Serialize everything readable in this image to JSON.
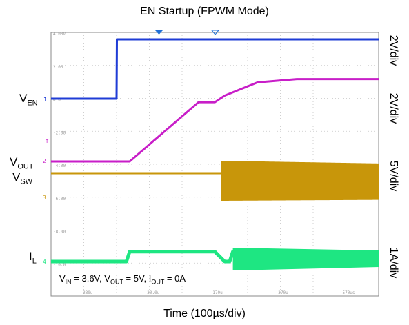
{
  "title": "EN Startup (FPWM Mode)",
  "xlabel": "Time (100µs/div)",
  "scales": [
    "2V/div",
    "2V/div",
    "5V/div",
    "1A/div"
  ],
  "signals": [
    {
      "main": "V",
      "sub": "EN"
    },
    {
      "main": "V",
      "sub": "OUT"
    },
    {
      "main": "V",
      "sub": "SW"
    },
    {
      "main": "I",
      "sub": "L"
    }
  ],
  "conditions": [
    {
      "main": "V",
      "sub": "IN",
      "value": " = 3.6V, "
    },
    {
      "main": "V",
      "sub": "OUT",
      "value": " = 5V, "
    },
    {
      "main": "I",
      "sub": "OUT",
      "value": " = 0A"
    }
  ],
  "chart_data": {
    "type": "line",
    "title": "EN Startup (FPWM Mode)",
    "xlabel": "Time (100µs/div)",
    "x_tick_labels": [
      "-230u",
      "-30.0u",
      "170u",
      "370u",
      "570us"
    ],
    "y_tick_labels": [
      "4.00V",
      "2.00",
      "0.0",
      "-2.00",
      "-4.00",
      "-6.00",
      "-8.00",
      "-10.0"
    ],
    "grid": true,
    "colors": {
      "VEN": "#1f3cd6",
      "VOUT": "#c81ec8",
      "VSW": "#c8960a",
      "IL": "#1ee682"
    },
    "series": [
      {
        "name": "VEN",
        "scale": "2V/div",
        "x": [
          -330,
          -130,
          -129,
          670
        ],
        "y": [
          0.0,
          0.0,
          3.6,
          3.6
        ]
      },
      {
        "name": "VOUT",
        "scale": "2V/div",
        "x": [
          -330,
          -90,
          120,
          170,
          200,
          300,
          420,
          670
        ],
        "y": [
          0.0,
          0.0,
          3.6,
          3.6,
          4.0,
          4.8,
          5.0,
          5.0
        ]
      },
      {
        "name": "VSW",
        "scale": "5V/div",
        "note": "switching begins near 190u; envelope grows from about 9.5 V peak-to-peak to about 8 V",
        "x": [
          -330,
          190,
          670
        ],
        "y": [
          0.0,
          0.0,
          0.0
        ]
      },
      {
        "name": "IL",
        "scale": "1A/div",
        "x": [
          -330,
          -100,
          -90,
          170,
          200,
          215,
          225,
          670
        ],
        "y": [
          0.0,
          0.0,
          0.3,
          0.3,
          0.0,
          0.0,
          0.3,
          0.3
        ]
      }
    ]
  }
}
